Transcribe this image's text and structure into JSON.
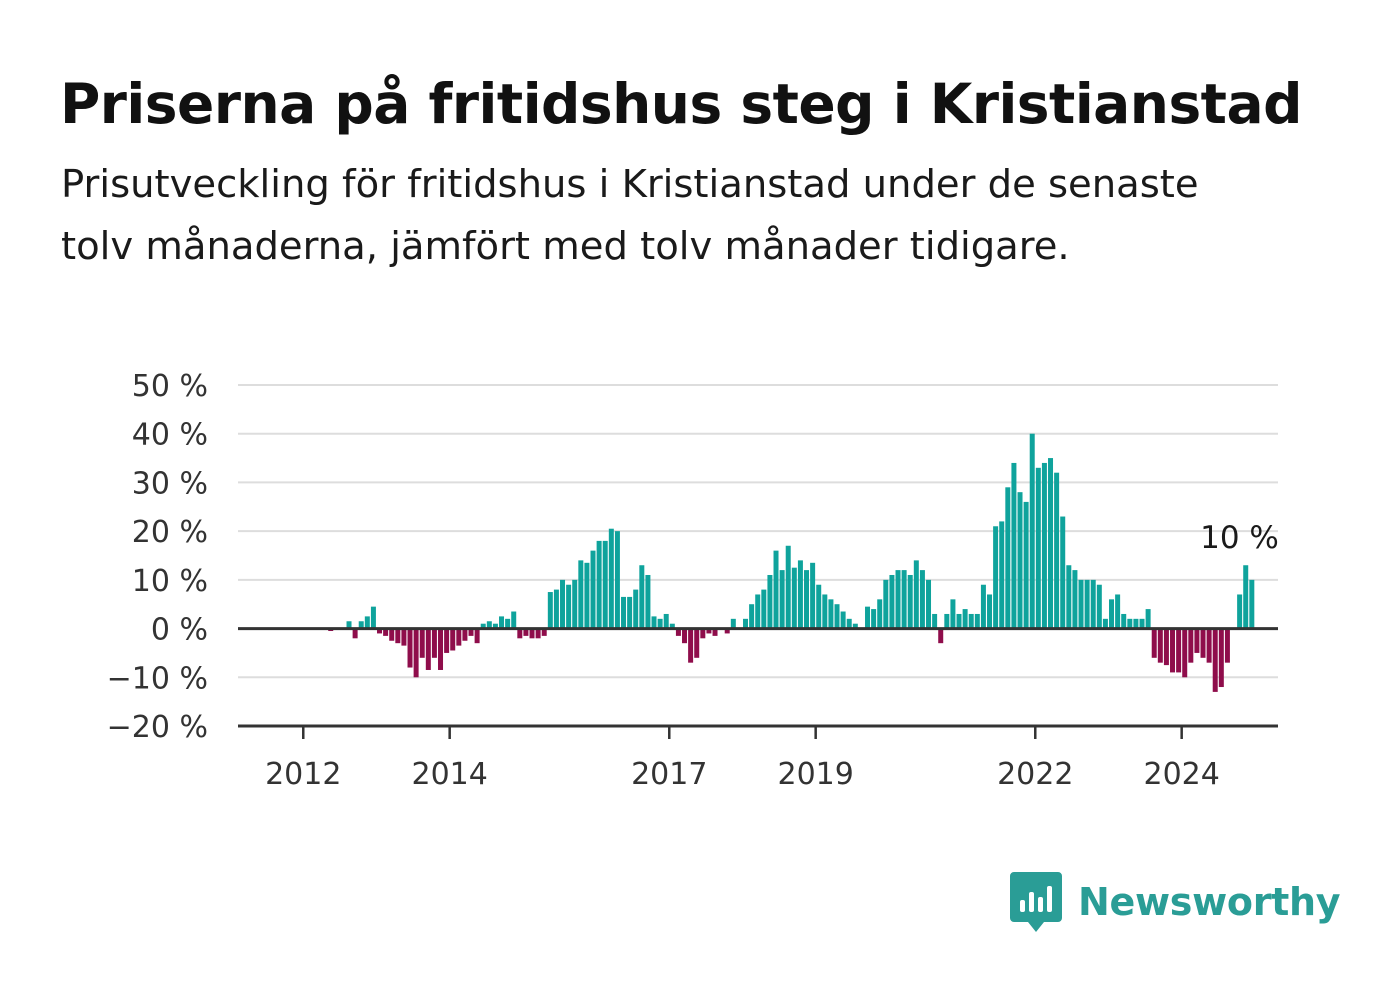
{
  "title": "Priserna på fritidshus steg i Kristianstad",
  "subtitle": "Prisutveckling för fritidshus i Kristianstad under de senaste tolv månaderna, jämfört med tolv månader tidigare.",
  "brand": {
    "name": "Newsworthy",
    "icon": "newsworthy-logo-icon",
    "color": "#2a9d96"
  },
  "colors": {
    "positive": "#0fa39c",
    "negative": "#8f0d4b",
    "grid": "#dddddd",
    "axis": "#333333"
  },
  "chart_data": {
    "type": "bar",
    "title": "",
    "xlabel": "",
    "ylabel": "",
    "ylim": [
      -20,
      50
    ],
    "y_ticks": [
      "50 %",
      "40 %",
      "30 %",
      "20 %",
      "10 %",
      "0 %",
      "−10 %",
      "−20 %"
    ],
    "y_tick_values": [
      50,
      40,
      30,
      20,
      10,
      0,
      -10,
      -20
    ],
    "x_ticks": [
      "2012",
      "2014",
      "2017",
      "2019",
      "2022",
      "2024"
    ],
    "x_tick_values": [
      "2012-01",
      "2014-01",
      "2017-01",
      "2019-01",
      "2022-01",
      "2024-01"
    ],
    "x_start": "2011-04",
    "frequency": "monthly",
    "grid": true,
    "annotation": {
      "text": "10 %",
      "x": "2024-09"
    },
    "series": [
      {
        "values": [
          0,
          0,
          0,
          0,
          0,
          0,
          0,
          0,
          0,
          0,
          0,
          0,
          0,
          -0.5,
          0,
          0,
          1.5,
          -2,
          1.5,
          2.5,
          4.5,
          -1,
          -1.5,
          -2.5,
          -3,
          -3.5,
          -8,
          -10,
          -6,
          -8.5,
          -6,
          -8.5,
          -5,
          -4.5,
          -3.5,
          -2.5,
          -1.5,
          -3,
          1,
          1.5,
          1,
          2.5,
          2,
          3.5,
          -2,
          -1.5,
          -2,
          -2,
          -1.5,
          7.5,
          8,
          10,
          9,
          10,
          14,
          13.5,
          16,
          18,
          18,
          20.5,
          20,
          6.5,
          6.5,
          8,
          13,
          11,
          2.5,
          2,
          3,
          1,
          -1.5,
          -3,
          -7,
          -6,
          -2,
          -1,
          -1.5,
          0,
          -1,
          2,
          0,
          2,
          5,
          7,
          8,
          11,
          16,
          12,
          17,
          12.5,
          14,
          12,
          13.5,
          9,
          7,
          6,
          5,
          3.5,
          2,
          1,
          0,
          4.5,
          4,
          6,
          10,
          11,
          12,
          12,
          11,
          14,
          12,
          10,
          3,
          -3,
          3,
          6,
          3,
          4,
          3,
          3,
          9,
          7,
          21,
          22,
          29,
          34,
          28,
          26,
          40,
          33,
          34,
          35,
          32,
          23,
          13,
          12,
          10,
          10,
          10,
          9,
          2,
          6,
          7,
          3,
          2,
          2,
          2,
          4,
          -6,
          -7,
          -7.5,
          -9,
          -9,
          -10,
          -7,
          -5,
          -6,
          -7,
          -13,
          -12,
          -7,
          0,
          7,
          13,
          10
        ]
      }
    ]
  }
}
